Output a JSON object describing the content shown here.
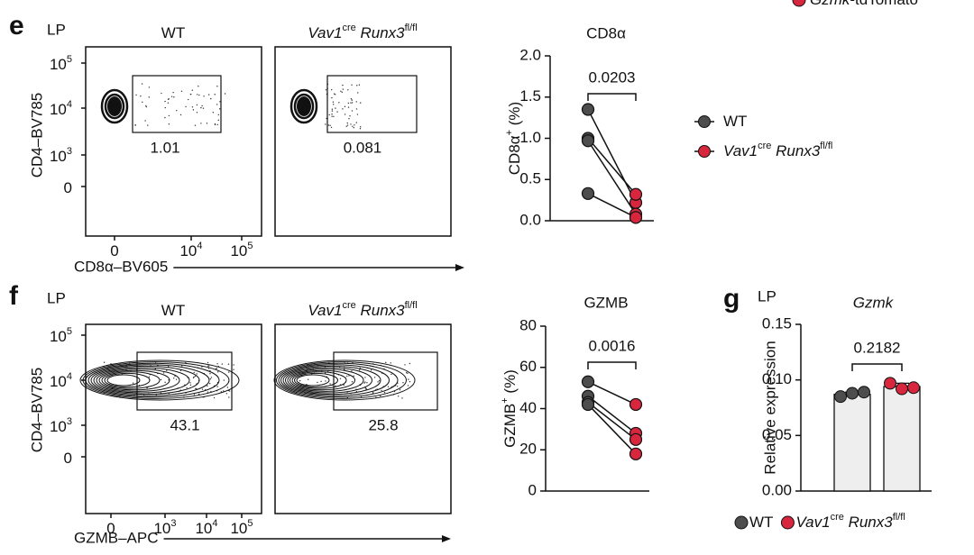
{
  "corner_legend": {
    "gene": "Gzmk",
    "suffix": "-tdTomato"
  },
  "flow": [
    {
      "letter": "e",
      "tissue": "LP",
      "y_label": "CD4–BV785",
      "x_label": "CD8α–BV605",
      "yticks": [
        [
          "10",
          "5"
        ],
        [
          "10",
          "4"
        ],
        [
          "10",
          "3"
        ],
        [
          "0"
        ]
      ],
      "xticks": [
        [
          "0"
        ],
        [
          "10",
          "4"
        ],
        [
          "10",
          "5"
        ]
      ],
      "gates": [
        1.01,
        0.081
      ]
    },
    {
      "letter": "f",
      "tissue": "LP",
      "y_label": "CD4–BV785",
      "x_label": "GZMB–APC",
      "yticks": [
        [
          "10",
          "5"
        ],
        [
          "10",
          "4"
        ],
        [
          "10",
          "3"
        ],
        [
          "0"
        ]
      ],
      "xticks": [
        [
          "0"
        ],
        [
          "10",
          "3"
        ],
        [
          "10",
          "4"
        ],
        [
          "10",
          "5"
        ]
      ],
      "gates": [
        43.1,
        25.8
      ]
    }
  ],
  "panel_g": {
    "letter": "g",
    "tissue": "LP"
  },
  "chart_data": [
    {
      "type": "paired_dot",
      "title": "CD8α",
      "y_label": [
        "CD8α",
        "+",
        " (%)"
      ],
      "ylim": [
        0,
        2
      ],
      "yticks": [
        {
          "value": 0,
          "label": "0.0"
        },
        0.5,
        {
          "value": 1,
          "label": "1.0"
        },
        1.5,
        {
          "value": 2,
          "label": "2.0"
        }
      ],
      "p_value": 0.0203,
      "legend": "right",
      "series": [
        {
          "name": [
            "WT"
          ],
          "color": "#4d4d4d",
          "values": [
            1.35,
            1.0,
            0.97,
            0.33
          ]
        },
        {
          "name": [
            "Vav1",
            "cre",
            " Runx3",
            "fl/fl"
          ],
          "color": "#d7263d",
          "values": [
            0.22,
            0.32,
            0.08,
            0.04
          ]
        }
      ]
    },
    {
      "type": "paired_dot",
      "title": "GZMB",
      "y_label": [
        "GZMB",
        "+",
        " (%)"
      ],
      "ylim": [
        0,
        80
      ],
      "yticks": [
        0,
        20,
        40,
        60,
        80
      ],
      "p_value": 0.0016,
      "series": [
        {
          "name": [
            "WT"
          ],
          "color": "#4d4d4d",
          "values": [
            53,
            46,
            43,
            42
          ]
        },
        {
          "name": [
            "Vav1",
            "cre",
            " Runx3",
            "fl/fl"
          ],
          "color": "#d7263d",
          "values": [
            42,
            28,
            25,
            18
          ]
        }
      ]
    },
    {
      "type": "bar",
      "title": "Gzmk",
      "y_label": "Relative expression",
      "ylim": [
        0,
        0.15
      ],
      "yticks": [
        {
          "value": 0,
          "label": "0.00"
        },
        0.05,
        {
          "value": 0.1,
          "label": "0.10"
        },
        0.15
      ],
      "p_value": 0.2182,
      "legend": "bottom",
      "bar_fill": "#eeeeee",
      "series": [
        {
          "name": [
            "WT"
          ],
          "color": "#4d4d4d",
          "values": [
            0.087
          ],
          "errors": [
            0.002
          ],
          "points": [
            0.085,
            0.088,
            0.089
          ]
        },
        {
          "name": [
            "Vav1",
            "cre",
            " Runx3",
            "fl/fl"
          ],
          "color": "#d7263d",
          "values": [
            0.094
          ],
          "errors": [
            0.003
          ],
          "points": [
            0.097,
            0.092,
            0.093
          ]
        }
      ]
    }
  ]
}
